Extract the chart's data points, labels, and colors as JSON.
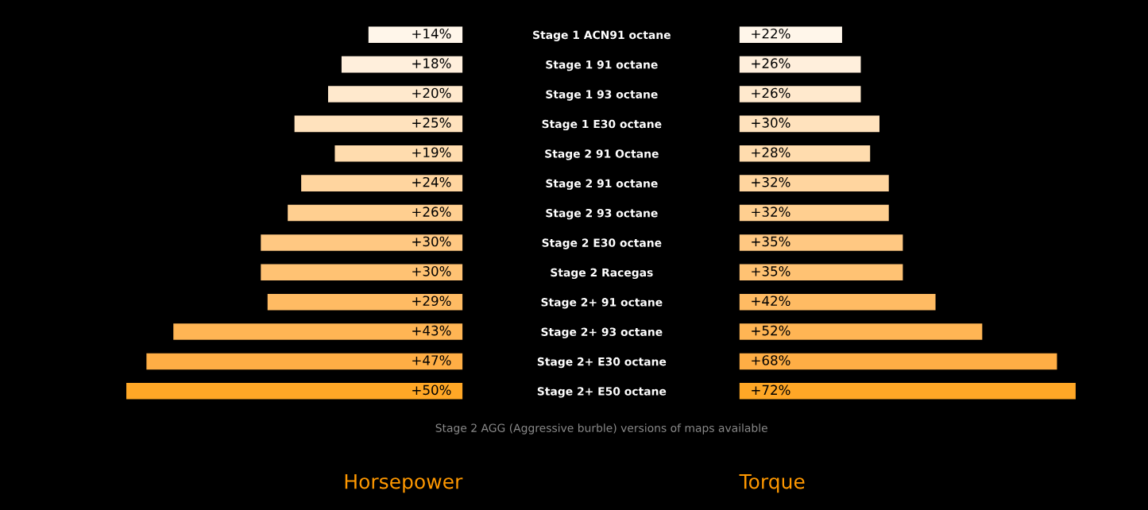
{
  "chart_data": [
    {
      "type": "bar",
      "orientation": "horizontal",
      "title": "Horsepower",
      "categories": [
        "Stage 1 ACN91 octane",
        "Stage 1 91 octane",
        "Stage 1 93 octane",
        "Stage 1 E30 octane",
        "Stage 2 91 Octane",
        "Stage 2 91 octane",
        "Stage 2 93 octane",
        "Stage 2 E30 octane",
        "Stage 2 Racegas",
        "Stage 2+ 91 octane",
        "Stage 2+ 93 octane",
        "Stage 2+ E30 octane",
        "Stage 2+ E50 octane"
      ],
      "values": [
        14,
        18,
        20,
        25,
        19,
        24,
        26,
        30,
        30,
        29,
        43,
        47,
        50
      ],
      "value_labels": [
        "+14%",
        "+18%",
        "+20%",
        "+25%",
        "+19%",
        "+24%",
        "+26%",
        "+30%",
        "+30%",
        "+29%",
        "+43%",
        "+47%",
        "+50%"
      ],
      "colors": [
        "#fff6ea",
        "#ffefdc",
        "#ffe9cd",
        "#ffe2bd",
        "#ffdcae",
        "#ffd59f",
        "#ffcf90",
        "#ffc882",
        "#ffc273",
        "#ffbb63",
        "#ffb554",
        "#ffae45",
        "#ffa726"
      ],
      "tick_labels": "y",
      "annotations": [
        "Stage 2 AGG (Aggressive burble) versions of maps available"
      ]
    },
    {
      "type": "bar",
      "orientation": "horizontal",
      "title": "Torque",
      "categories": [
        null,
        null,
        null,
        null,
        null,
        null,
        null,
        null,
        null,
        null,
        null,
        null,
        null
      ],
      "values": [
        22,
        26,
        26,
        30,
        28,
        32,
        32,
        35,
        35,
        42,
        52,
        68,
        72
      ],
      "value_labels": [
        "+22%",
        "+26%",
        "+26%",
        "+30%",
        "+28%",
        "+32%",
        "+32%",
        "+35%",
        "+35%",
        "+42%",
        "+52%",
        "+68%",
        "+72%"
      ],
      "colors": [
        "#fff6ea",
        "#ffefdc",
        "#ffe9cd",
        "#ffe2bd",
        "#ffdcae",
        "#ffd59f",
        "#ffcf90",
        "#ffc882",
        "#ffc273",
        "#ffbb63",
        "#ffb554",
        "#ffae45",
        "#ffa726"
      ],
      "tick_labels": false
    }
  ]
}
